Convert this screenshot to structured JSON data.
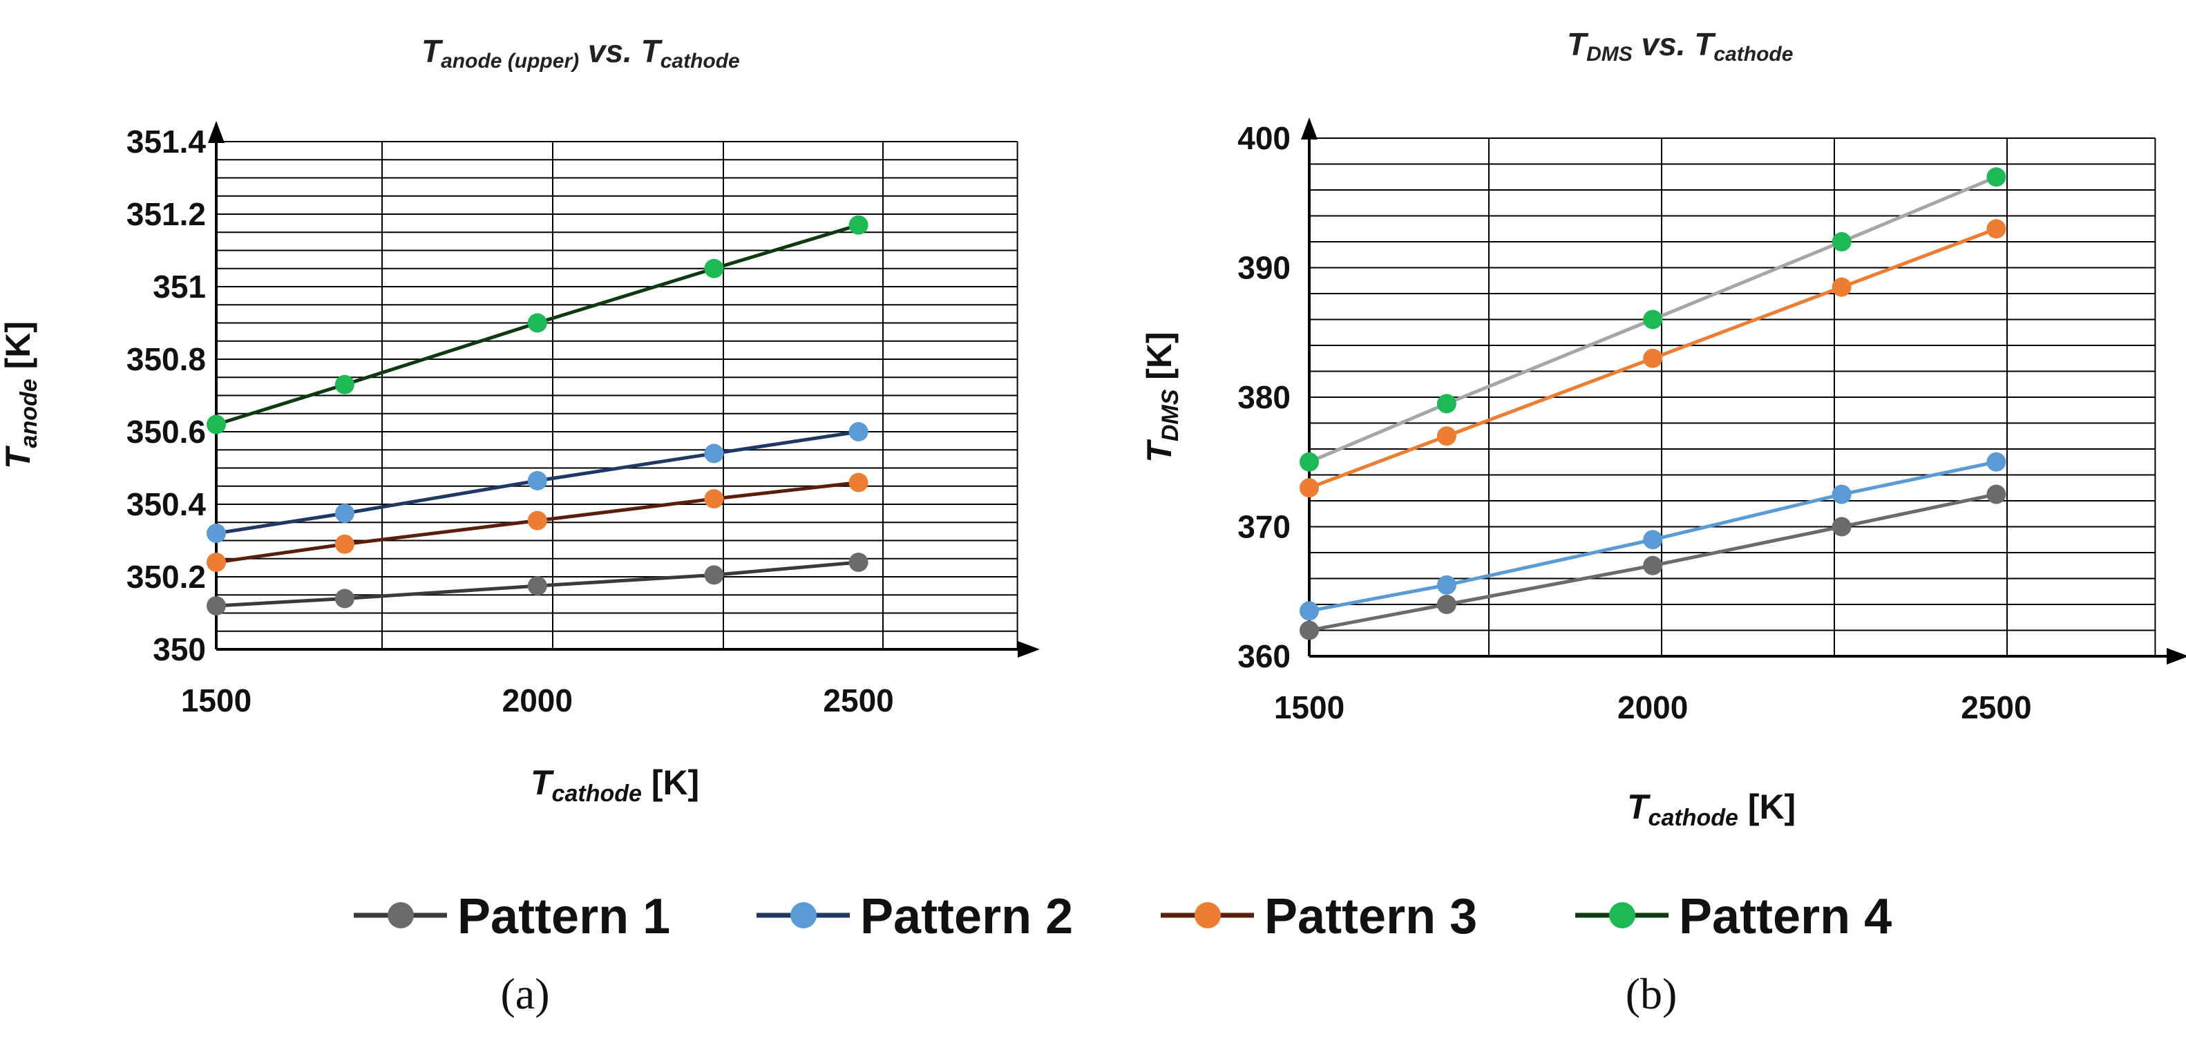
{
  "chart_data": [
    {
      "id": "a",
      "type": "line",
      "title": {
        "main": "T",
        "sub": "anode (upper)",
        "mid": " vs. T",
        "sub2": "cathode"
      },
      "xlabel": {
        "main": "T",
        "sub": "cathode",
        "unit": " [K]"
      },
      "ylabel": {
        "main": "T",
        "sub": "anode",
        "unit": " [K]"
      },
      "x_ticks": [
        "1500",
        "2000",
        "2500"
      ],
      "y_ticks": [
        "350",
        "350.2",
        "350.4",
        "350.6",
        "350.8",
        "351",
        "351.2",
        "351.4"
      ],
      "xlim": [
        1500,
        2750
      ],
      "ylim": [
        350,
        351.4
      ],
      "x": [
        1500,
        1700,
        2000,
        2275,
        2500
      ],
      "series": [
        {
          "name": "Pattern 1",
          "values": [
            350.12,
            350.14,
            350.175,
            350.205,
            350.24
          ]
        },
        {
          "name": "Pattern 2",
          "values": [
            350.32,
            350.375,
            350.465,
            350.54,
            350.6
          ]
        },
        {
          "name": "Pattern 3",
          "values": [
            350.24,
            350.29,
            350.355,
            350.415,
            350.46
          ]
        },
        {
          "name": "Pattern 4",
          "values": [
            350.62,
            350.73,
            350.9,
            351.05,
            351.17
          ]
        }
      ],
      "caption": "(a)"
    },
    {
      "id": "b",
      "type": "line",
      "title": {
        "main": "T",
        "sub": "DMS",
        "mid": " vs. T",
        "sub2": "cathode"
      },
      "xlabel": {
        "main": "T",
        "sub": "cathode",
        "unit": " [K]"
      },
      "ylabel": {
        "main": "T",
        "sub": "DMS",
        "unit": " [K]"
      },
      "x_ticks": [
        "1500",
        "2000",
        "2500"
      ],
      "y_ticks": [
        "360",
        "370",
        "380",
        "390",
        "400"
      ],
      "xlim": [
        1500,
        2750
      ],
      "ylim": [
        360,
        400
      ],
      "x": [
        1500,
        1700,
        2000,
        2275,
        2500
      ],
      "series": [
        {
          "name": "Pattern 1",
          "values": [
            362,
            364,
            367,
            370,
            372.5
          ]
        },
        {
          "name": "Pattern 2",
          "values": [
            363.5,
            365.5,
            369,
            372.5,
            375
          ]
        },
        {
          "name": "Pattern 3",
          "values": [
            373,
            377,
            383,
            388.5,
            393
          ]
        },
        {
          "name": "Pattern 4",
          "values": [
            375,
            379.5,
            386,
            392,
            397
          ]
        }
      ],
      "caption": "(b)"
    }
  ],
  "legend": [
    "Pattern 1",
    "Pattern 2",
    "Pattern 3",
    "Pattern 4"
  ],
  "colors": {
    "pattern1": {
      "line": "#3a3a3a",
      "marker": "#6b6b6b"
    },
    "pattern2": {
      "line": "#1f3864",
      "marker": "#5b9bd5"
    },
    "pattern3": {
      "line": "#5a1f0a",
      "marker": "#ed7d31"
    },
    "pattern4": {
      "line": "#0e3a12",
      "marker": "#1db954"
    },
    "b_pattern1_line": "#6b6b6b",
    "b_pattern2_line": "#5b9bd5",
    "b_pattern3_line": "#ed7d31",
    "b_pattern4_line": "#a6a6a6",
    "grid": "#000000"
  }
}
